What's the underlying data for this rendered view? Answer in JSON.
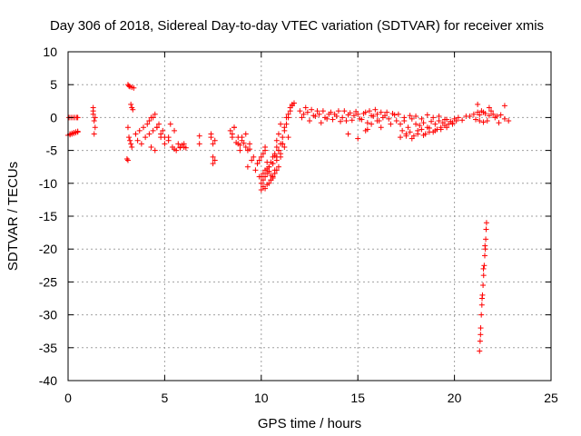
{
  "chart_data": {
    "type": "scatter",
    "title": "Day 306 of 2018, Sidereal Day-to-day VTEC variation (SDTVAR) for receiver xmis",
    "xlabel": "GPS time / hours",
    "ylabel": "SDTVAR / TECUs",
    "xlim": [
      0,
      25
    ],
    "ylim": [
      -40,
      10
    ],
    "xticks": [
      "0",
      "5",
      "10",
      "15",
      "20",
      "25"
    ],
    "yticks": [
      "10",
      "5",
      "0",
      "-5",
      "-10",
      "-15",
      "-20",
      "-25",
      "-30",
      "-35",
      "-40"
    ],
    "grid": true,
    "marker": "+",
    "marker_color": "#ff0000",
    "series": [
      {
        "name": "SDTVAR",
        "x": [
          0.0,
          0.1,
          0.2,
          0.3,
          0.4,
          0.5,
          0.05,
          0.15,
          0.25,
          0.35,
          0.45,
          0.5,
          0.1,
          0.2,
          0.3,
          0.4,
          0.5,
          1.3,
          1.3,
          1.35,
          1.4,
          1.35,
          1.4,
          1.3,
          3.1,
          3.15,
          3.2,
          3.3,
          3.4,
          3.25,
          3.3,
          3.35,
          3.1,
          3.15,
          3.2,
          3.25,
          3.3,
          3.1,
          3.05,
          3.5,
          3.7,
          3.9,
          4.1,
          4.3,
          4.5,
          4.7,
          4.9,
          5.0,
          3.6,
          3.8,
          4.0,
          4.2,
          4.4,
          4.6,
          4.8,
          4.3,
          4.5,
          4.2,
          4.4,
          4.6,
          4.8,
          5.0,
          5.2,
          5.4,
          5.6,
          5.8,
          6.0,
          6.1,
          5.3,
          5.5,
          5.7,
          5.9,
          6.0,
          5.2,
          5.5,
          5.8,
          6.8,
          6.8,
          7.4,
          7.5,
          7.6,
          7.5,
          7.4,
          7.6,
          7.5,
          8.4,
          8.6,
          8.8,
          9.0,
          9.2,
          9.4,
          9.6,
          9.8,
          8.5,
          8.7,
          8.9,
          9.1,
          9.3,
          9.5,
          9.7,
          9.9,
          8.6,
          8.8,
          9.0,
          9.2,
          9.4,
          8.5,
          8.9,
          9.3,
          10.0,
          10.1,
          10.2,
          10.3,
          10.4,
          10.5,
          10.6,
          10.7,
          10.8,
          10.9,
          11.0,
          11.1,
          11.2,
          11.3,
          11.4,
          11.5,
          11.6,
          11.7,
          10.0,
          10.1,
          10.2,
          10.3,
          10.4,
          10.5,
          10.6,
          10.7,
          10.8,
          10.9,
          11.0,
          11.1,
          11.2,
          11.3,
          11.4,
          11.5,
          11.6,
          10.0,
          10.2,
          10.4,
          10.6,
          10.8,
          11.0,
          11.2,
          11.4,
          10.1,
          10.3,
          10.5,
          10.7,
          10.9,
          11.1,
          9.8,
          9.9,
          10.0,
          10.1,
          10.2,
          10.3,
          10.4,
          10.5,
          10.6,
          10.7,
          10.8,
          10.9,
          11.0,
          10.2,
          10.4,
          10.6,
          10.8,
          12.0,
          12.2,
          12.4,
          12.6,
          12.8,
          13.0,
          13.2,
          13.4,
          13.6,
          13.8,
          14.0,
          14.2,
          14.4,
          14.6,
          14.8,
          15.0,
          15.2,
          15.4,
          15.6,
          15.8,
          16.0,
          16.2,
          16.4,
          16.6,
          16.8,
          17.0,
          12.1,
          12.3,
          12.5,
          12.7,
          12.9,
          13.1,
          13.3,
          13.5,
          13.7,
          13.9,
          14.1,
          14.3,
          14.5,
          14.7,
          14.9,
          15.1,
          15.3,
          15.5,
          15.7,
          15.9,
          16.1,
          16.3,
          16.5,
          16.7,
          16.9,
          14.5,
          15.0,
          15.5,
          15.4,
          15.7,
          16.0,
          16.2,
          17.2,
          17.4,
          17.6,
          17.8,
          18.0,
          18.2,
          18.4,
          18.6,
          18.8,
          19.0,
          19.2,
          19.4,
          19.6,
          19.8,
          20.0,
          20.2,
          20.4,
          20.6,
          17.3,
          17.5,
          17.7,
          17.9,
          18.1,
          18.3,
          18.5,
          18.7,
          18.9,
          19.1,
          19.3,
          19.5,
          19.7,
          19.9,
          20.1,
          17.1,
          17.4,
          17.7,
          18.0,
          18.3,
          18.6,
          18.9,
          19.2,
          19.5,
          17.2,
          17.5,
          17.8,
          18.1,
          18.4,
          18.7,
          19.0,
          19.3,
          19.6,
          19.9,
          20.8,
          21.0,
          21.2,
          21.4,
          21.6,
          21.8,
          22.0,
          22.2,
          22.4,
          22.6,
          22.8,
          21.1,
          21.3,
          21.5,
          21.7,
          21.9,
          22.1,
          22.3,
          21.2,
          21.8,
          22.6,
          21.3,
          21.5,
          21.3,
          21.33,
          21.36,
          21.39,
          21.42,
          21.45,
          21.48,
          21.51,
          21.54,
          21.57,
          21.6,
          21.62,
          21.64,
          21.66,
          21.35,
          21.43,
          21.5,
          21.58
        ],
        "y": [
          -2.7,
          -2.5,
          -2.4,
          -2.3,
          -2.2,
          -2.1,
          0.0,
          0.0,
          0.0,
          0.0,
          0.0,
          0.0,
          -2.6,
          -2.5,
          -2.4,
          -2.3,
          -2.2,
          1.5,
          0.5,
          -0.5,
          -1.5,
          -2.5,
          0.0,
          1.0,
          5.0,
          4.8,
          4.7,
          4.6,
          4.5,
          2.0,
          1.5,
          1.2,
          -1.5,
          -3.0,
          -3.5,
          -4.0,
          -4.5,
          -6.5,
          -6.3,
          -2.5,
          -2.0,
          -1.5,
          -1.0,
          0.0,
          0.5,
          -1.0,
          -2.0,
          -3.0,
          -3.5,
          -4.0,
          -3.0,
          -2.5,
          -2.0,
          -1.5,
          -3.0,
          -4.5,
          -5.0,
          -0.5,
          0.0,
          -1.5,
          -2.5,
          -4.0,
          -3.0,
          -4.5,
          -5.0,
          -4.5,
          -4.5,
          -4.6,
          -1.0,
          -2.0,
          -4.0,
          -4.2,
          -4.0,
          -3.5,
          -4.8,
          -4.6,
          -2.8,
          -4.0,
          -3.0,
          -4.0,
          -6.5,
          -6.0,
          -2.5,
          -3.5,
          -7.0,
          -2.0,
          -1.5,
          -3.0,
          -3.5,
          -4.5,
          -4.0,
          -6.0,
          -7.0,
          -2.5,
          -3.8,
          -4.2,
          -3.9,
          -5.0,
          -6.5,
          -8.0,
          -9.0,
          -1.5,
          -4.0,
          -3.0,
          -2.5,
          -4.8,
          -3.0,
          -5.0,
          -7.5,
          -11.0,
          -10.5,
          -10.8,
          -10.2,
          -10.0,
          -9.5,
          -9.0,
          -8.5,
          -8.0,
          -7.5,
          -6.0,
          -4.0,
          -2.0,
          -1.0,
          0.0,
          1.0,
          1.8,
          2.2,
          -10.0,
          -9.5,
          -9.0,
          -8.5,
          -8.2,
          -8.8,
          -9.2,
          -8.0,
          -6.5,
          -5.0,
          -4.0,
          -3.0,
          -1.5,
          0.0,
          0.5,
          1.5,
          2.0,
          -9.0,
          -8.0,
          -7.5,
          -7.0,
          -6.0,
          -5.5,
          -4.5,
          -3.0,
          -8.5,
          -7.8,
          -6.8,
          -5.8,
          -5.0,
          -4.0,
          -7.0,
          -6.5,
          -6.0,
          -5.5,
          -4.5,
          -6.8,
          -8.2,
          -9.5,
          -7.0,
          -5.5,
          -3.5,
          -2.5,
          -1.0,
          -5.0,
          -7.5,
          -6.0,
          -4.5,
          1.0,
          0.5,
          0.8,
          1.2,
          0.2,
          0.5,
          1.0,
          -0.2,
          0.8,
          0.5,
          1.0,
          0.0,
          -0.5,
          0.7,
          0.3,
          0.5,
          -0.3,
          0.8,
          1.0,
          0.2,
          0.5,
          0.8,
          0.3,
          -0.2,
          0.6,
          -0.5,
          0.0,
          1.5,
          -0.5,
          0.3,
          1.0,
          -0.8,
          0.0,
          0.5,
          -0.3,
          0.2,
          -0.6,
          1.0,
          0.4,
          -0.4,
          0.9,
          -0.2,
          0.6,
          -0.8,
          0.3,
          1.2,
          -0.5,
          0.0,
          0.8,
          -1.0,
          0.4,
          -2.5,
          -3.2,
          -1.8,
          -2.0,
          -1.0,
          -0.5,
          -1.5,
          -1.0,
          -0.5,
          -1.5,
          -0.2,
          -1.0,
          -1.2,
          -0.8,
          -1.5,
          -0.6,
          -1.0,
          -0.5,
          -0.8,
          -0.3,
          -0.6,
          -0.2,
          0.0,
          -0.4,
          0.2,
          -2.0,
          -2.5,
          -2.2,
          -2.8,
          -2.0,
          -1.8,
          -2.5,
          -1.6,
          -2.2,
          -1.8,
          -1.5,
          -1.2,
          -1.0,
          -0.8,
          -0.5,
          0.5,
          0.0,
          0.3,
          0.2,
          -0.2,
          0.4,
          0.0,
          0.2,
          -0.3,
          -3.0,
          -2.8,
          -3.2,
          -2.5,
          -2.7,
          -2.2,
          -2.0,
          -1.8,
          -1.5,
          -1.0,
          0.2,
          0.5,
          0.8,
          1.0,
          0.6,
          0.3,
          0.5,
          0.2,
          0.4,
          -0.2,
          -0.5,
          -0.3,
          0.4,
          0.8,
          -0.5,
          1.0,
          0.0,
          -0.8,
          2.0,
          1.5,
          1.8,
          -0.5,
          -0.7,
          -35.5,
          -34.0,
          -32.0,
          -30.0,
          -28.5,
          -27.0,
          -25.5,
          -24.0,
          -22.5,
          -21.0,
          -20.0,
          -18.5,
          -17.0,
          -16.0,
          -33.0,
          -27.5,
          -23.0,
          -19.5
        ]
      }
    ]
  }
}
